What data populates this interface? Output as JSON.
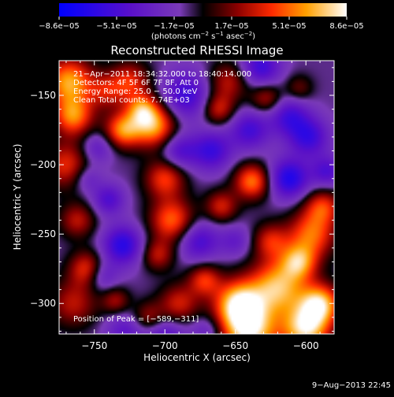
{
  "chart_data": {
    "type": "heatmap",
    "title": "Reconstructed RHESSI Image",
    "xlabel": "Heliocentric X (arcsec)",
    "ylabel": "Heliocentric Y (arcsec)",
    "xlim": [
      -775,
      -580
    ],
    "ylim": [
      -322,
      -125
    ],
    "x_ticks": [
      -750,
      -700,
      -650,
      -600
    ],
    "y_ticks": [
      -150,
      -200,
      -250,
      -300
    ],
    "x_tick_labels": [
      "−750",
      "−700",
      "−650",
      "−600"
    ],
    "y_tick_labels": [
      "−150",
      "−200",
      "−250",
      "−300"
    ],
    "colorbar": {
      "range": [
        -8.6e-05,
        8.6e-05
      ],
      "tick_labels": [
        "−8.6e−05",
        "−5.1e−05",
        "−1.7e−05",
        "1.7e−05",
        "5.1e−05",
        "8.6e−05"
      ],
      "unit_prefix": "(photons cm",
      "unit_sup1": "−2",
      "unit_mid": " s",
      "unit_sup2": "−1",
      "unit_mid2": " asec",
      "unit_sup3": "−2",
      "unit_suffix": ")"
    },
    "annotations": {
      "time_range": "21−Apr−2011 18:34:32.000 to 18:40:14.000",
      "detectors": "Detectors: 4F 5F 6F 7F 8F, Att 0",
      "energy": "Energy Range: 25.0 − 50.0 keV",
      "algorithm": "Clean    Total counts: 7.74E+03",
      "peak": "Position of Peak = [−589,−311]"
    },
    "peak": [
      -589,
      -311
    ],
    "blobs_units": "[x arcsec, y arcsec, radius arcsec, relative intensity -1..1]",
    "blobs": [
      [
        -768,
        -140,
        12,
        0.85
      ],
      [
        -765,
        -165,
        10,
        0.75
      ],
      [
        -770,
        -200,
        12,
        0.55
      ],
      [
        -762,
        -240,
        9,
        0.45
      ],
      [
        -755,
        -275,
        9,
        0.6
      ],
      [
        -765,
        -300,
        12,
        0.45
      ],
      [
        -725,
        -140,
        10,
        0.55
      ],
      [
        -742,
        -147,
        9,
        0.4
      ],
      [
        -730,
        -175,
        9,
        0.75
      ],
      [
        -708,
        -172,
        11,
        0.85
      ],
      [
        -716,
        -160,
        8,
        0.6
      ],
      [
        -700,
        -210,
        10,
        0.6
      ],
      [
        -695,
        -240,
        11,
        0.7
      ],
      [
        -705,
        -265,
        8,
        0.45
      ],
      [
        -690,
        -300,
        10,
        0.5
      ],
      [
        -712,
        -310,
        8,
        0.4
      ],
      [
        -655,
        -140,
        10,
        0.45
      ],
      [
        -662,
        -160,
        8,
        0.5
      ],
      [
        -628,
        -152,
        8,
        0.45
      ],
      [
        -605,
        -145,
        7,
        0.3
      ],
      [
        -638,
        -212,
        9,
        0.75
      ],
      [
        -660,
        -230,
        8,
        0.5
      ],
      [
        -625,
        -255,
        9,
        0.5
      ],
      [
        -596,
        -250,
        12,
        0.7
      ],
      [
        -588,
        -230,
        9,
        0.55
      ],
      [
        -620,
        -288,
        14,
        0.9
      ],
      [
        -648,
        -300,
        12,
        0.95
      ],
      [
        -640,
        -320,
        14,
        1.0
      ],
      [
        -600,
        -318,
        12,
        1.0
      ],
      [
        -590,
        -300,
        10,
        0.9
      ],
      [
        -605,
        -270,
        9,
        0.7
      ],
      [
        -672,
        -283,
        8,
        0.55
      ],
      [
        -735,
        -298,
        7,
        0.4
      ],
      [
        -740,
        -225,
        8,
        -0.45
      ],
      [
        -730,
        -258,
        10,
        -0.65
      ],
      [
        -745,
        -280,
        8,
        -0.4
      ],
      [
        -748,
        -188,
        8,
        -0.35
      ],
      [
        -685,
        -150,
        12,
        -0.55
      ],
      [
        -690,
        -190,
        9,
        -0.45
      ],
      [
        -667,
        -190,
        10,
        -0.55
      ],
      [
        -676,
        -255,
        10,
        -0.5
      ],
      [
        -640,
        -175,
        10,
        -0.5
      ],
      [
        -632,
        -130,
        10,
        -0.55
      ],
      [
        -612,
        -165,
        10,
        -0.5
      ],
      [
        -598,
        -180,
        10,
        -0.55
      ],
      [
        -612,
        -210,
        10,
        -0.7
      ],
      [
        -585,
        -205,
        8,
        -0.45
      ],
      [
        -650,
        -255,
        8,
        -0.3
      ],
      [
        -728,
        -320,
        10,
        -0.35
      ],
      [
        -700,
        -325,
        10,
        -0.45
      ],
      [
        -670,
        -320,
        8,
        -0.3
      ],
      [
        -755,
        -210,
        7,
        -0.3
      ]
    ]
  },
  "footer": {
    "timestamp": "9−Aug−2013 22:45"
  }
}
